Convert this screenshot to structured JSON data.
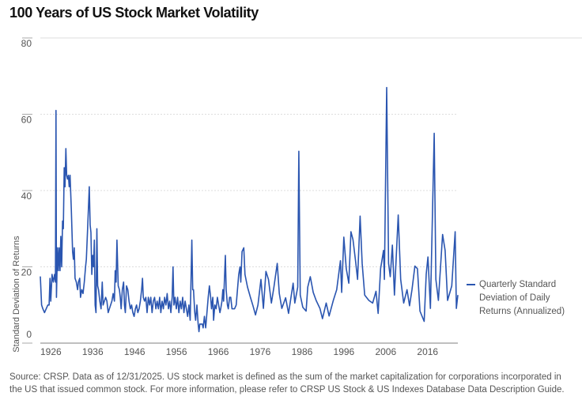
{
  "title": "100 Years of US Stock Market Volatility",
  "footer": "Source: CRSP. Data as of 12/31/2025. US stock market is defined as the sum of the market capitalization for corporations incorporated in the US that issued common stock. For more information, please refer to CRSP US Stock & US Indexes Database Data Description Guide.",
  "colors": {
    "series": "#2a55b0",
    "grid": "#d8d8d8",
    "axis": "#999999",
    "text": "#555555"
  },
  "chart_data": {
    "type": "line",
    "title": "100 Years of US Stock Market Volatility",
    "xlabel": "",
    "ylabel": "Standard Deviation of Returns",
    "xlim": [
      1926,
      2025.75
    ],
    "ylim": [
      0,
      80
    ],
    "yticks": [
      "0",
      "20",
      "40",
      "60",
      "80"
    ],
    "xticks": [
      "1926",
      "1936",
      "1946",
      "1956",
      "1966",
      "1976",
      "1986",
      "1996",
      "2006",
      "2016"
    ],
    "grid": true,
    "legend_position": "right",
    "series": [
      {
        "name": "Quarterly Standard Deviation of Daily Returns (Annualized)",
        "points": [
          [
            1926.0,
            17.5
          ],
          [
            1926.3,
            10
          ],
          [
            1926.6,
            9
          ],
          [
            1927.0,
            8
          ],
          [
            1927.4,
            9
          ],
          [
            1927.8,
            10
          ],
          [
            1928.1,
            10
          ],
          [
            1928.3,
            17
          ],
          [
            1928.5,
            11
          ],
          [
            1928.8,
            18
          ],
          [
            1929.1,
            16
          ],
          [
            1929.4,
            18
          ],
          [
            1929.6,
            16
          ],
          [
            1929.75,
            61
          ],
          [
            1929.85,
            12
          ],
          [
            1930.1,
            25
          ],
          [
            1930.3,
            19
          ],
          [
            1930.5,
            25
          ],
          [
            1930.7,
            19
          ],
          [
            1930.9,
            28
          ],
          [
            1931.1,
            20
          ],
          [
            1931.3,
            32
          ],
          [
            1931.5,
            30
          ],
          [
            1931.7,
            46
          ],
          [
            1931.9,
            41
          ],
          [
            1932.1,
            51
          ],
          [
            1932.3,
            44
          ],
          [
            1932.5,
            43
          ],
          [
            1932.7,
            44
          ],
          [
            1932.9,
            41
          ],
          [
            1933.1,
            44
          ],
          [
            1933.4,
            35
          ],
          [
            1933.7,
            24
          ],
          [
            1933.9,
            22
          ],
          [
            1934.1,
            25
          ],
          [
            1934.3,
            17
          ],
          [
            1934.6,
            16
          ],
          [
            1934.9,
            14
          ],
          [
            1935.1,
            16
          ],
          [
            1935.4,
            17
          ],
          [
            1935.6,
            12
          ],
          [
            1935.9,
            14
          ],
          [
            1936.2,
            13
          ],
          [
            1936.5,
            16
          ],
          [
            1936.8,
            20
          ],
          [
            1937.0,
            22
          ],
          [
            1937.3,
            30
          ],
          [
            1937.7,
            41
          ],
          [
            1937.9,
            31
          ],
          [
            1938.1,
            29
          ],
          [
            1938.3,
            18
          ],
          [
            1938.5,
            23
          ],
          [
            1938.7,
            20
          ],
          [
            1938.9,
            27
          ],
          [
            1939.1,
            10
          ],
          [
            1939.3,
            8
          ],
          [
            1939.5,
            30
          ],
          [
            1939.7,
            15
          ],
          [
            1939.9,
            14
          ],
          [
            1940.2,
            11
          ],
          [
            1940.5,
            9
          ],
          [
            1940.8,
            16
          ],
          [
            1941.0,
            10
          ],
          [
            1941.3,
            11
          ],
          [
            1941.6,
            12
          ],
          [
            1941.9,
            11
          ],
          [
            1942.2,
            8
          ],
          [
            1942.5,
            9
          ],
          [
            1942.8,
            10
          ],
          [
            1943.1,
            11
          ],
          [
            1943.4,
            13
          ],
          [
            1943.7,
            11
          ],
          [
            1943.9,
            19
          ],
          [
            1944.1,
            16
          ],
          [
            1944.3,
            27
          ],
          [
            1944.6,
            15
          ],
          [
            1944.9,
            14
          ],
          [
            1945.1,
            12
          ],
          [
            1945.3,
            9
          ],
          [
            1945.6,
            14
          ],
          [
            1945.9,
            16
          ],
          [
            1946.1,
            10
          ],
          [
            1946.3,
            8
          ],
          [
            1946.6,
            15
          ],
          [
            1946.9,
            14
          ],
          [
            1947.2,
            11
          ],
          [
            1947.5,
            9
          ],
          [
            1947.8,
            10
          ],
          [
            1948.1,
            8
          ],
          [
            1948.4,
            7
          ],
          [
            1948.7,
            9
          ],
          [
            1949.0,
            10
          ],
          [
            1949.3,
            8
          ],
          [
            1949.6,
            9
          ],
          [
            1949.9,
            11
          ],
          [
            1950.2,
            14
          ],
          [
            1950.4,
            17
          ],
          [
            1950.6,
            12
          ],
          [
            1950.9,
            11
          ],
          [
            1951.2,
            12
          ],
          [
            1951.5,
            8
          ],
          [
            1951.8,
            12
          ],
          [
            1952.1,
            10
          ],
          [
            1952.4,
            12
          ],
          [
            1952.7,
            8
          ],
          [
            1953.0,
            11
          ],
          [
            1953.3,
            12
          ],
          [
            1953.6,
            9
          ],
          [
            1953.9,
            11
          ],
          [
            1954.2,
            9
          ],
          [
            1954.5,
            12
          ],
          [
            1954.8,
            8
          ],
          [
            1955.1,
            11
          ],
          [
            1955.4,
            9
          ],
          [
            1955.7,
            12
          ],
          [
            1956.0,
            10
          ],
          [
            1956.3,
            13
          ],
          [
            1956.6,
            9
          ],
          [
            1956.9,
            11
          ],
          [
            1957.2,
            8
          ],
          [
            1957.5,
            12
          ],
          [
            1957.7,
            20
          ],
          [
            1957.9,
            10
          ],
          [
            1958.2,
            12
          ],
          [
            1958.5,
            9
          ],
          [
            1958.8,
            12
          ],
          [
            1959.1,
            8
          ],
          [
            1959.4,
            11
          ],
          [
            1959.7,
            9
          ],
          [
            1960.0,
            12
          ],
          [
            1960.3,
            8
          ],
          [
            1960.6,
            11
          ],
          [
            1960.9,
            9
          ],
          [
            1961.2,
            7
          ],
          [
            1961.5,
            10
          ],
          [
            1961.8,
            6
          ],
          [
            1962.2,
            27
          ],
          [
            1962.4,
            14
          ],
          [
            1962.6,
            14
          ],
          [
            1962.9,
            8
          ],
          [
            1963.1,
            6
          ],
          [
            1963.4,
            10
          ],
          [
            1963.7,
            5
          ],
          [
            1963.9,
            3
          ],
          [
            1964.1,
            5
          ],
          [
            1964.4,
            5
          ],
          [
            1964.7,
            5
          ],
          [
            1964.9,
            4
          ],
          [
            1965.2,
            7
          ],
          [
            1965.5,
            4
          ],
          [
            1965.8,
            8
          ],
          [
            1966.1,
            12
          ],
          [
            1966.4,
            15
          ],
          [
            1966.7,
            12
          ],
          [
            1966.9,
            9
          ],
          [
            1967.2,
            12
          ],
          [
            1967.4,
            6
          ],
          [
            1967.7,
            10
          ],
          [
            1968.0,
            9
          ],
          [
            1968.3,
            12
          ],
          [
            1968.6,
            10
          ],
          [
            1968.9,
            8
          ],
          [
            1969.1,
            9
          ],
          [
            1969.4,
            11
          ],
          [
            1969.6,
            14
          ],
          [
            1969.8,
            11
          ],
          [
            1970.2,
            23
          ],
          [
            1970.4,
            14
          ],
          [
            1970.7,
            10
          ],
          [
            1970.9,
            9
          ],
          [
            1971.2,
            12
          ],
          [
            1971.5,
            12
          ],
          [
            1971.8,
            9
          ],
          [
            1972.1,
            9
          ],
          [
            1972.4,
            9
          ],
          [
            1972.8,
            10
          ],
          [
            1973.1,
            14
          ],
          [
            1973.4,
            18
          ],
          [
            1973.7,
            20
          ],
          [
            1973.9,
            16
          ],
          [
            1974.2,
            24
          ],
          [
            1974.6,
            25
          ],
          [
            1974.9,
            18
          ],
          [
            1975.5,
            14.7
          ],
          [
            1976.2,
            12
          ],
          [
            1976.8,
            9.8
          ],
          [
            1977.4,
            7.4
          ],
          [
            1978.0,
            10
          ],
          [
            1978.7,
            16.7
          ],
          [
            1979.3,
            9.1
          ],
          [
            1979.9,
            18.8
          ],
          [
            1980.5,
            16.7
          ],
          [
            1981.2,
            10.5
          ],
          [
            1981.8,
            14.7
          ],
          [
            1982.6,
            20.9
          ],
          [
            1983.1,
            13
          ],
          [
            1983.7,
            9.1
          ],
          [
            1984.6,
            11.9
          ],
          [
            1985.3,
            7.8
          ],
          [
            1986.4,
            15.7
          ],
          [
            1986.8,
            10.5
          ],
          [
            1987.5,
            14.7
          ],
          [
            1987.75,
            50.3
          ],
          [
            1988.1,
            12.6
          ],
          [
            1988.7,
            9.4
          ],
          [
            1989.5,
            8.4
          ],
          [
            1989.9,
            14.7
          ],
          [
            1990.5,
            17.4
          ],
          [
            1991.2,
            13.3
          ],
          [
            1991.9,
            11.2
          ],
          [
            1992.8,
            9.1
          ],
          [
            1993.4,
            6.4
          ],
          [
            1994.3,
            10.5
          ],
          [
            1995.0,
            7.1
          ],
          [
            1996.0,
            11.2
          ],
          [
            1996.8,
            14
          ],
          [
            1997.7,
            21.6
          ],
          [
            1998.0,
            13.3
          ],
          [
            1998.5,
            27.8
          ],
          [
            1999.1,
            19.5
          ],
          [
            1999.7,
            15.7
          ],
          [
            2000.2,
            29.2
          ],
          [
            2000.7,
            27.1
          ],
          [
            2001.3,
            21.6
          ],
          [
            2001.8,
            16.7
          ],
          [
            2002.4,
            33.3
          ],
          [
            2002.9,
            20.9
          ],
          [
            2003.5,
            12.6
          ],
          [
            2004.5,
            11.2
          ],
          [
            2005.4,
            10.5
          ],
          [
            2006.2,
            13.6
          ],
          [
            2006.7,
            7.8
          ],
          [
            2007.3,
            19.5
          ],
          [
            2008.0,
            24.3
          ],
          [
            2008.2,
            16.7
          ],
          [
            2008.75,
            67
          ],
          [
            2009.2,
            20.9
          ],
          [
            2009.6,
            17.4
          ],
          [
            2010.1,
            25.7
          ],
          [
            2010.6,
            12.6
          ],
          [
            2011.5,
            33.6
          ],
          [
            2012.1,
            16.7
          ],
          [
            2012.8,
            10.5
          ],
          [
            2013.6,
            14
          ],
          [
            2014.2,
            9.8
          ],
          [
            2014.8,
            14
          ],
          [
            2015.5,
            20.2
          ],
          [
            2016.1,
            19.5
          ],
          [
            2016.7,
            8.4
          ],
          [
            2017.7,
            5.7
          ],
          [
            2018.2,
            18.1
          ],
          [
            2018.6,
            22.6
          ],
          [
            2019.2,
            9.1
          ],
          [
            2020.1,
            55
          ],
          [
            2020.5,
            16.7
          ],
          [
            2021.1,
            11.2
          ],
          [
            2022.1,
            28.5
          ],
          [
            2022.7,
            24.3
          ],
          [
            2023.3,
            11.2
          ],
          [
            2024.3,
            15
          ],
          [
            2025.1,
            29.2
          ],
          [
            2025.4,
            9.1
          ],
          [
            2025.75,
            12.6
          ]
        ]
      }
    ]
  }
}
